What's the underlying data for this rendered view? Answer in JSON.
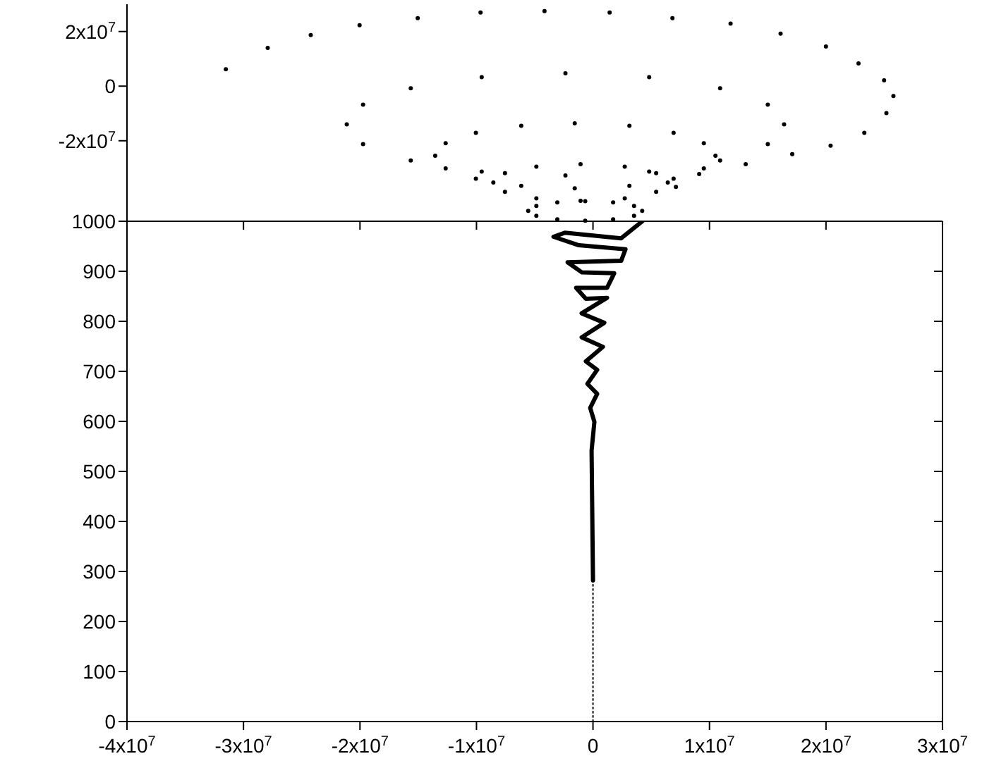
{
  "chart_data": [
    {
      "type": "scatter",
      "marker": "circle",
      "tick_labels": "y",
      "xlim": [
        -40000000,
        30000000
      ],
      "ylim": [
        -50000000,
        30000000
      ],
      "yticks": [
        {
          "value": 20000000,
          "label": "2x10$^{7}$"
        },
        0,
        {
          "value": -20000000,
          "label": "-2x10$^{7}$"
        }
      ],
      "series": [
        {
          "color": "#000000",
          "x": [
            -31500000.0,
            -27900000.0,
            -24200000.0,
            -20000000.0,
            -15000000.0,
            -9600000.0,
            -4100000.0,
            1500000.0,
            6900000.0,
            11900000.0,
            16200000.0,
            20100000.0,
            22900000.0,
            25100000.0,
            25900000.0,
            25300000.0,
            23400000.0,
            20500000.0,
            17200000.0,
            13200000.0,
            9200000.0,
            7200000.0
          ],
          "values": [
            6200000.0,
            14000000.0,
            18700000.0,
            22300000.0,
            24900000.0,
            27000000.0,
            27500000.0,
            27000000.0,
            24900000.0,
            22900000.0,
            19200000.0,
            14500000.0,
            8300000.0,
            2100000.0,
            -3600000.0,
            -9900000.0,
            -17100000.0,
            -21800000.0,
            -24900000.0,
            -28600000.0,
            -32200000.0,
            -36900000.0
          ]
        },
        {
          "color": "#000000",
          "x": [
            16500000.0,
            15100000.0,
            11000000.0,
            4900000.0,
            -2300000.0,
            -9500000.0,
            -15600000.0,
            -19700000.0,
            -21100000.0,
            -19700000.0,
            -15600000.0,
            -9500000.0,
            -2300000.0,
            4900000.0,
            11000000.0,
            15100000.0
          ],
          "values": [
            -14000000.0,
            -6800000.0,
            -800000.0,
            3300000.0,
            4700000.0,
            3300000.0,
            -800000.0,
            -6800000.0,
            -14000000.0,
            -21200000.0,
            -27200000.0,
            -31300000.0,
            -32700000.0,
            -31300000.0,
            -27200000.0,
            -21200000.0
          ]
        },
        {
          "color": "#000000",
          "x": [
            10600000.0,
            9600000.0,
            7000000.0,
            3200000.0,
            -1500000.0,
            -6100000.0,
            -10000000.0,
            -12600000.0,
            -13500000.0,
            -12600000.0,
            -10000000.0,
            -6100000.0,
            -1500000.0,
            3200000.0,
            7000000.0,
            9600000.0
          ],
          "values": [
            -25500000.0,
            -20900000.0,
            -17100000.0,
            -14500000.0,
            -13600000.0,
            -14500000.0,
            -17100000.0,
            -20900000.0,
            -25500000.0,
            -30100000.0,
            -33900000.0,
            -36500000.0,
            -37400000.0,
            -36500000.0,
            -33900000.0,
            -30100000.0
          ]
        },
        {
          "color": "#000000",
          "x": [
            6500000.0,
            5500000.0,
            2800000.0,
            -1000000.0,
            -4800000.0,
            -7500000.0,
            -8500000.0,
            -7500000.0,
            -4800000.0,
            -1000000.0,
            2800000.0,
            5500000.0
          ],
          "values": [
            -35300000.0,
            -31900000.0,
            -29500000.0,
            -28600000.0,
            -29500000.0,
            -31900000.0,
            -35300000.0,
            -38700000.0,
            -41100000.0,
            -42000000.0,
            -41100000.0,
            -38700000.0
          ]
        },
        {
          "color": "#000000",
          "x": [
            4300000.0,
            3600000.0,
            1800000.0,
            -600000.0,
            -3000000.0,
            -4800000.0,
            -5500000.0,
            -4800000.0,
            -3000000.0,
            -600000.0,
            1800000.0,
            3600000.0
          ],
          "values": [
            -45700000.0,
            -43900000.0,
            -42600000.0,
            -42100000.0,
            -42600000.0,
            -43900000.0,
            -45700000.0,
            -47500000.0,
            -48800000.0,
            -49300000.0,
            -48800000.0,
            -47500000.0
          ]
        }
      ]
    },
    {
      "type": "line",
      "xlim": [
        -40000000,
        30000000
      ],
      "ylim": [
        0,
        1000
      ],
      "xticks": [
        {
          "value": -40000000,
          "label": "-4x10$^{7}$"
        },
        {
          "value": -30000000,
          "label": "-3x10$^{7}$"
        },
        {
          "value": -20000000,
          "label": "-2x10$^{7}$"
        },
        {
          "value": -10000000,
          "label": "-1x10$^{7}$"
        },
        0,
        {
          "value": 10000000,
          "label": "1x10$^{7}$"
        },
        {
          "value": 20000000,
          "label": "2x10$^{7}$"
        },
        {
          "value": 30000000,
          "label": "3x10$^{7}$"
        }
      ],
      "yticks": [
        0,
        100,
        200,
        300,
        400,
        500,
        600,
        700,
        800,
        900,
        1000
      ],
      "series": [
        {
          "color": "#000000",
          "line_style": "solid",
          "x": [
            4240000.0,
            2420000.0,
            -2420000.0,
            -3390000.0,
            -1210000.0,
            2790000.0,
            2420000.0,
            -2180000.0,
            -970000.0,
            1820000.0,
            1210000.0,
            -1450000.0,
            -610000.0,
            1210000.0,
            -970000.0,
            970000.0,
            -970000.0,
            850000.0,
            -610000.0,
            360000.0,
            -480000.0,
            360000.0,
            -240000.0,
            120000.0,
            -120000.0,
            0
          ],
          "values": [
            1000,
            966,
            977,
            969,
            952,
            944,
            921,
            918,
            898,
            896,
            867,
            867,
            845,
            847,
            816,
            797,
            768,
            749,
            720,
            703,
            675,
            655,
            627,
            599,
            542,
            282
          ]
        },
        {
          "color": "#000000",
          "line_style": "dotted",
          "x": [
            0,
            0
          ],
          "values": [
            282,
            0
          ]
        }
      ]
    }
  ]
}
